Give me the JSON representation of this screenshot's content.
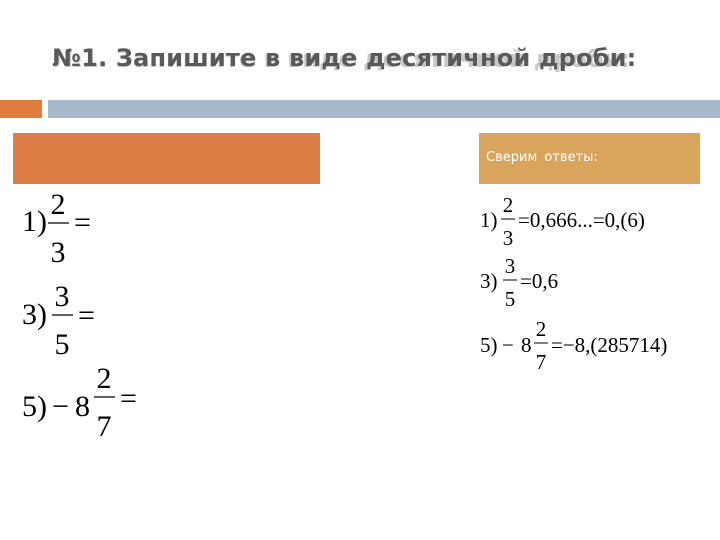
{
  "slide": {
    "title": "№1. Запишите в виде десятичной дроби:",
    "answers_label": "Сверим  ответы:"
  },
  "colors": {
    "accent_orange": "#e07c3e",
    "accent_blue": "#a6b8c9",
    "left_box": "#dd7e46",
    "right_box": "#d9a55c",
    "title_text": "#595959"
  },
  "tasks": [
    {
      "num": "1)",
      "sign": "",
      "whole": "",
      "numerator": "2",
      "denominator": "3",
      "eq": "="
    },
    {
      "num": "3)",
      "sign": "",
      "whole": "",
      "numerator": "3",
      "denominator": "5",
      "eq": "="
    },
    {
      "num": "5)",
      "sign": "−",
      "whole": "8",
      "numerator": "2",
      "denominator": "7",
      "eq": "="
    }
  ],
  "answers": [
    {
      "num": "1)",
      "sign": "",
      "whole": "",
      "numerator": "2",
      "denominator": "3",
      "result": "=0,666...=0,(6)"
    },
    {
      "num": "3)",
      "sign": "",
      "whole": "",
      "numerator": "3",
      "denominator": "5",
      "result": "=0,6"
    },
    {
      "num": "5)",
      "sign": "−",
      "whole": "8",
      "numerator": "2",
      "denominator": "7",
      "result": "=−8,(285714)"
    }
  ]
}
